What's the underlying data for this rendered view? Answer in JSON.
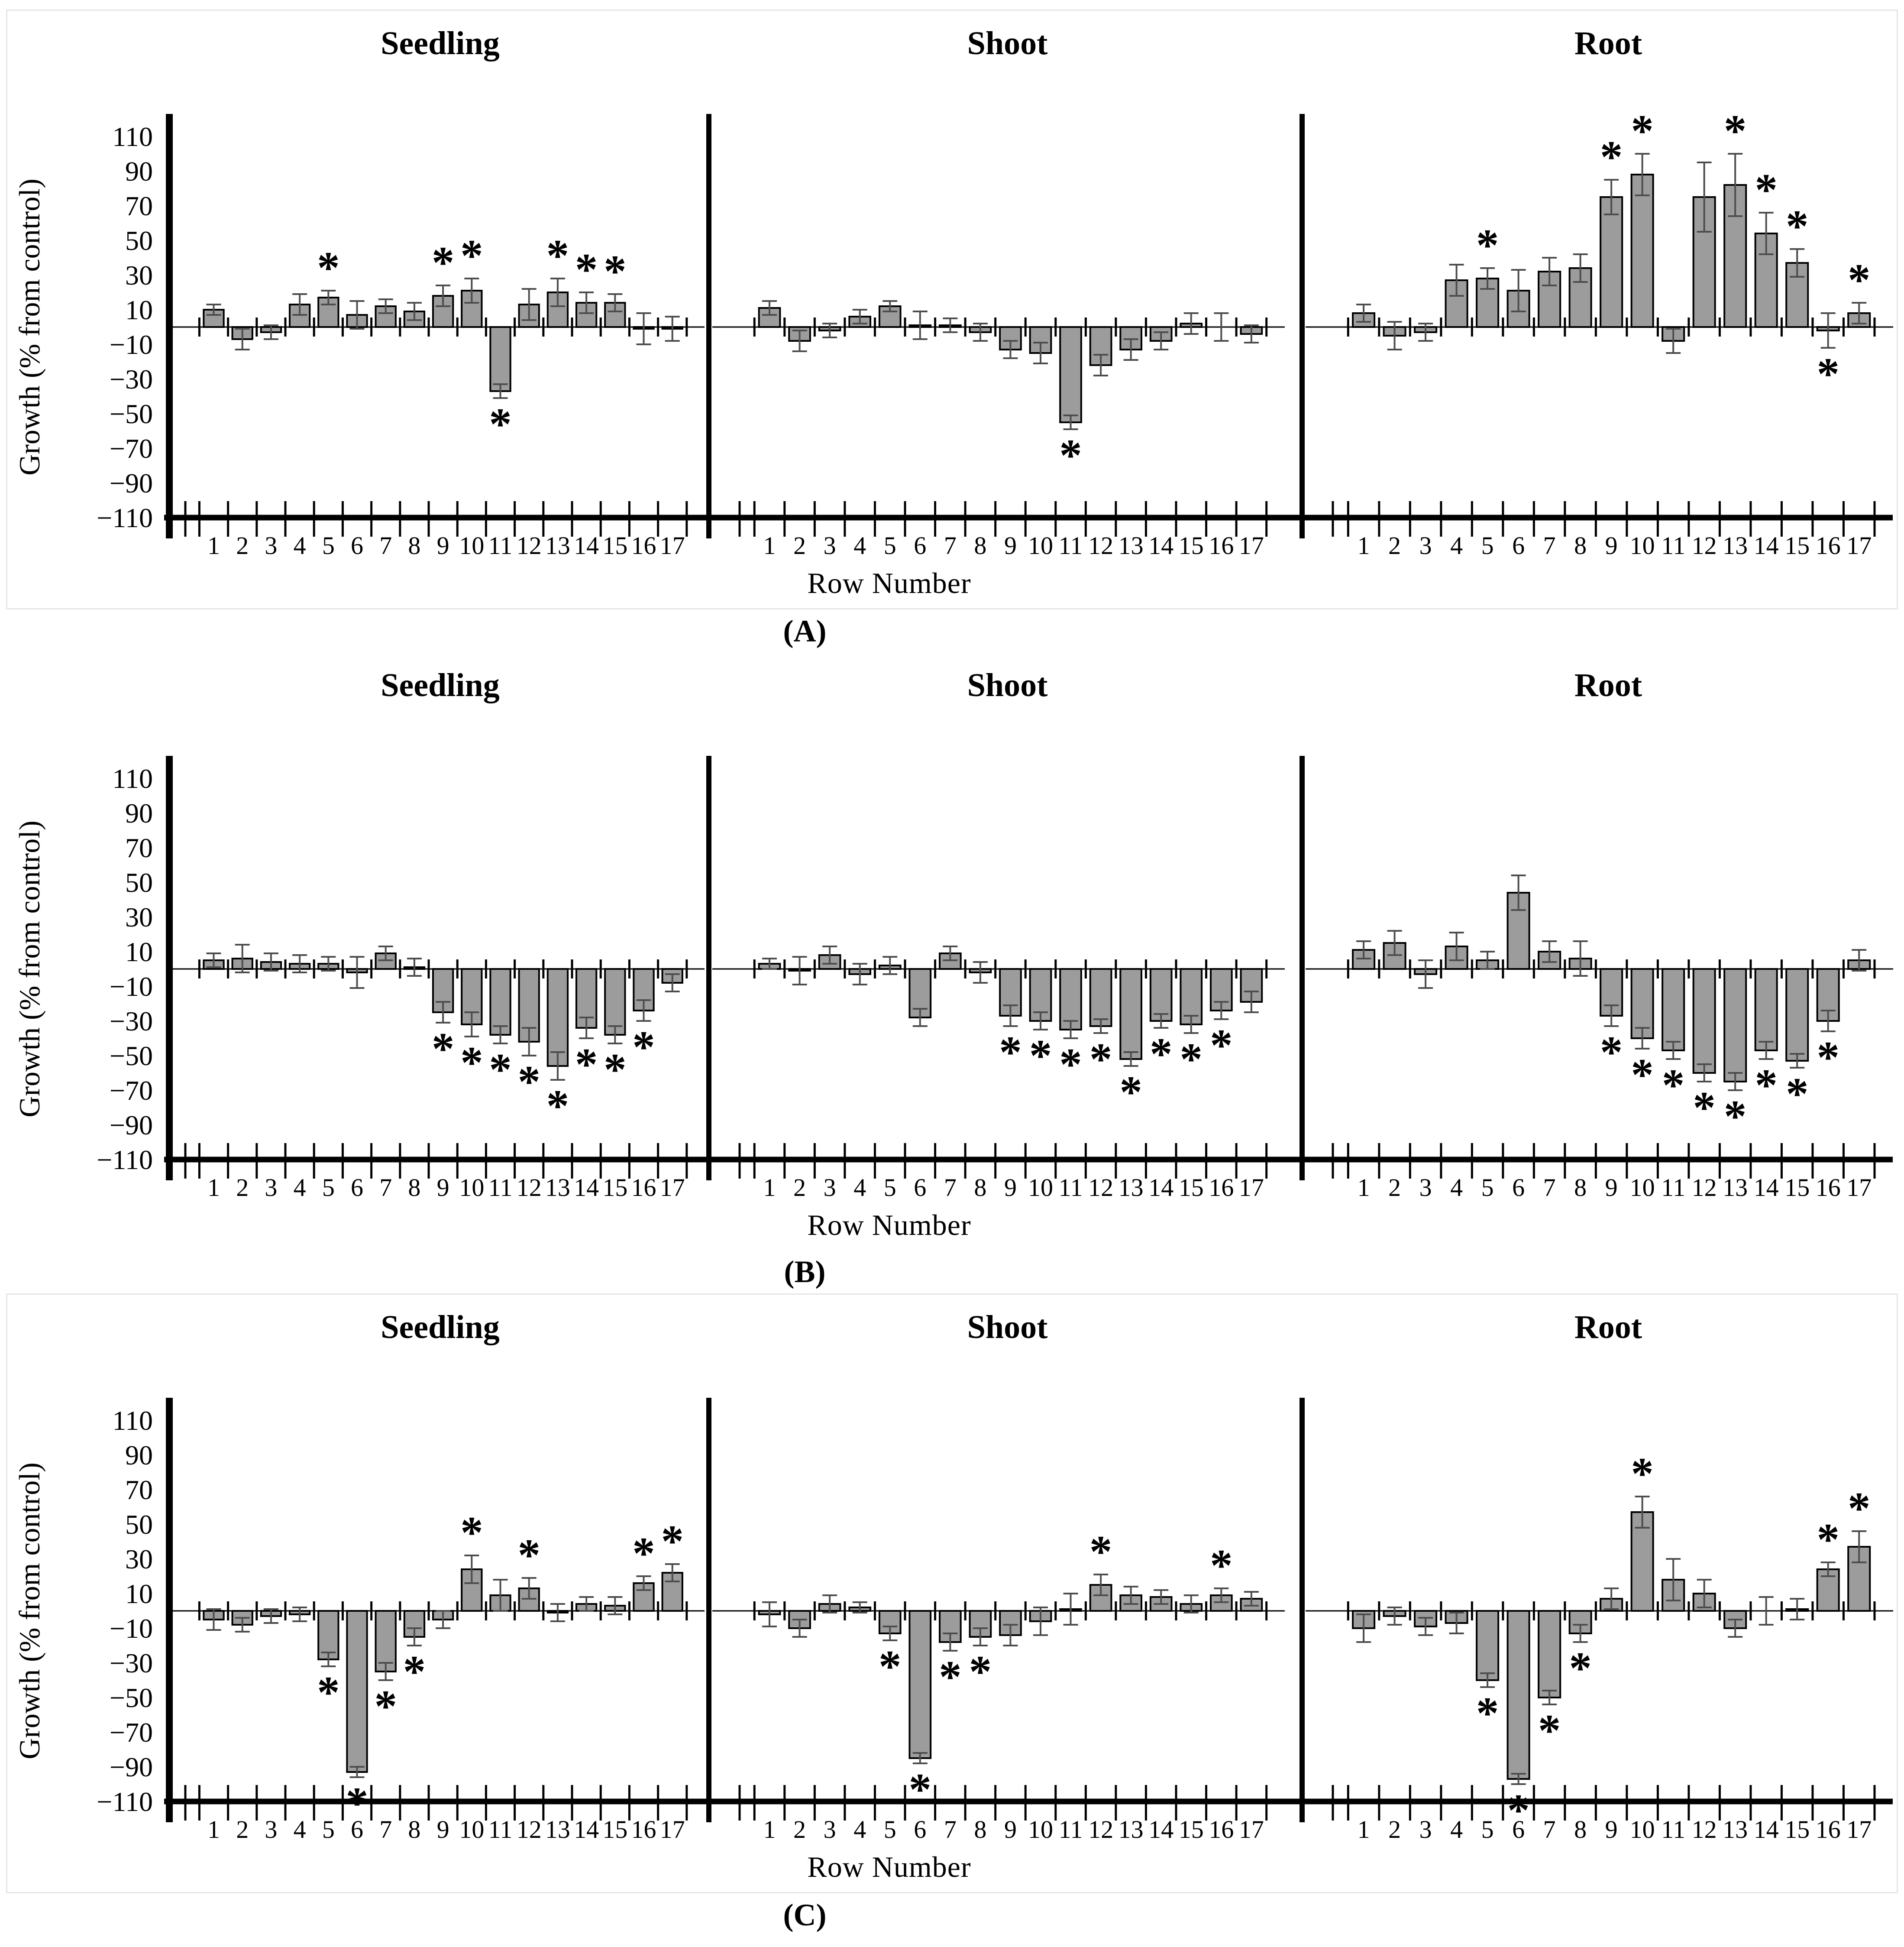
{
  "figure": {
    "ylabel": "Growth (% from control)",
    "xlabel": "Row Number",
    "y_ticks": [
      110,
      90,
      70,
      50,
      30,
      10,
      -10,
      -30,
      -50,
      -70,
      -90,
      -110
    ],
    "panel_labels": [
      "(A)",
      "(B)",
      "(C)"
    ],
    "subplot_titles": [
      "Seedling",
      "Shoot",
      "Root"
    ],
    "significance_marker": "*",
    "bar_color": "#9c9c9c",
    "bar_edge_color": "#000000",
    "error_bar_color": "#4d4d4d",
    "box_border_color": "#e6e6e6"
  },
  "chart_data": [
    {
      "panel": "A",
      "type": "bar",
      "ylabel": "Growth (% from control)",
      "xlabel": "Row Number",
      "ylim": [
        -110,
        110
      ],
      "categories": [
        1,
        2,
        3,
        4,
        5,
        6,
        7,
        8,
        9,
        10,
        11,
        12,
        13,
        14,
        15,
        16,
        17
      ],
      "series": [
        {
          "name": "Seedling",
          "values": [
            10,
            -7,
            -3,
            13,
            17,
            7,
            12,
            9,
            18,
            21,
            -37,
            13,
            20,
            14,
            14,
            -1,
            -1
          ],
          "errors": [
            3,
            6,
            4,
            6,
            4,
            8,
            4,
            5,
            6,
            7,
            4,
            9,
            8,
            6,
            5,
            9,
            7
          ],
          "significant": [
            5,
            9,
            10,
            11,
            13,
            14,
            15
          ]
        },
        {
          "name": "Shoot",
          "values": [
            11,
            -8,
            -2,
            6,
            12,
            1,
            1,
            -3,
            -13,
            -15,
            -55,
            -22,
            -13,
            -8,
            2,
            0,
            -4
          ],
          "errors": [
            4,
            6,
            4,
            4,
            3,
            8,
            4,
            5,
            5,
            6,
            4,
            6,
            6,
            5,
            6,
            8,
            5
          ],
          "significant": [
            11
          ]
        },
        {
          "name": "Root",
          "values": [
            8,
            -5,
            -3,
            27,
            28,
            21,
            32,
            34,
            75,
            88,
            -8,
            75,
            82,
            54,
            37,
            -2,
            8
          ],
          "errors": [
            5,
            8,
            5,
            9,
            6,
            12,
            8,
            8,
            10,
            12,
            7,
            20,
            18,
            12,
            8,
            10,
            6
          ],
          "significant": [
            5,
            9,
            10,
            13,
            14,
            15,
            16,
            17
          ]
        }
      ]
    },
    {
      "panel": "B",
      "type": "bar",
      "ylabel": "Growth (% from control)",
      "xlabel": "Row Number",
      "ylim": [
        -110,
        110
      ],
      "categories": [
        1,
        2,
        3,
        4,
        5,
        6,
        7,
        8,
        9,
        10,
        11,
        12,
        13,
        14,
        15,
        16,
        17
      ],
      "series": [
        {
          "name": "Seedling",
          "values": [
            5,
            6,
            4,
            3,
            3,
            -2,
            9,
            1,
            -25,
            -32,
            -38,
            -42,
            -56,
            -34,
            -38,
            -24,
            -8
          ],
          "errors": [
            4,
            8,
            5,
            5,
            4,
            9,
            4,
            5,
            6,
            7,
            5,
            8,
            8,
            6,
            5,
            6,
            5
          ],
          "significant": [
            9,
            10,
            11,
            12,
            13,
            14,
            15,
            16
          ]
        },
        {
          "name": "Shoot",
          "values": [
            3,
            -1,
            8,
            -3,
            2,
            -28,
            9,
            -2,
            -27,
            -30,
            -35,
            -33,
            -52,
            -30,
            -32,
            -24,
            -19
          ],
          "errors": [
            3,
            8,
            5,
            6,
            5,
            5,
            4,
            6,
            6,
            5,
            5,
            4,
            4,
            4,
            5,
            5,
            6
          ],
          "significant": [
            9,
            10,
            11,
            12,
            13,
            14,
            15,
            16
          ]
        },
        {
          "name": "Root",
          "values": [
            11,
            15,
            -3,
            13,
            5,
            44,
            10,
            6,
            -27,
            -40,
            -47,
            -60,
            -65,
            -47,
            -53,
            -30,
            5
          ],
          "errors": [
            5,
            7,
            8,
            8,
            5,
            10,
            6,
            10,
            6,
            6,
            5,
            5,
            5,
            5,
            4,
            6,
            6
          ],
          "significant": [
            9,
            10,
            11,
            12,
            13,
            14,
            15,
            16
          ]
        }
      ]
    },
    {
      "panel": "C",
      "type": "bar",
      "ylabel": "Growth (% from control)",
      "xlabel": "Row Number",
      "ylim": [
        -110,
        110
      ],
      "categories": [
        1,
        2,
        3,
        4,
        5,
        6,
        7,
        8,
        9,
        10,
        11,
        12,
        13,
        14,
        15,
        16,
        17
      ],
      "series": [
        {
          "name": "Seedling",
          "values": [
            -5,
            -8,
            -3,
            -2,
            -28,
            -93,
            -35,
            -15,
            -5,
            24,
            9,
            13,
            -1,
            4,
            3,
            16,
            22
          ],
          "errors": [
            6,
            4,
            4,
            4,
            4,
            3,
            5,
            5,
            5,
            8,
            9,
            6,
            5,
            4,
            5,
            4,
            5
          ],
          "significant": [
            5,
            6,
            7,
            8,
            10,
            12,
            16,
            17
          ]
        },
        {
          "name": "Shoot",
          "values": [
            -2,
            -10,
            4,
            2,
            -13,
            -85,
            -18,
            -15,
            -14,
            -6,
            1,
            15,
            9,
            8,
            4,
            9,
            7
          ],
          "errors": [
            7,
            5,
            5,
            3,
            4,
            3,
            5,
            5,
            6,
            8,
            9,
            6,
            5,
            4,
            5,
            4,
            4
          ],
          "significant": [
            5,
            6,
            7,
            8,
            12,
            16
          ]
        },
        {
          "name": "Root",
          "values": [
            -10,
            -3,
            -9,
            -7,
            -40,
            -97,
            -50,
            -13,
            7,
            57,
            18,
            10,
            -10,
            0,
            1,
            24,
            37
          ],
          "errors": [
            8,
            5,
            5,
            6,
            4,
            3,
            4,
            5,
            6,
            9,
            12,
            8,
            5,
            8,
            6,
            4,
            9
          ],
          "significant": [
            5,
            6,
            7,
            8,
            10,
            16,
            17
          ]
        }
      ]
    }
  ]
}
